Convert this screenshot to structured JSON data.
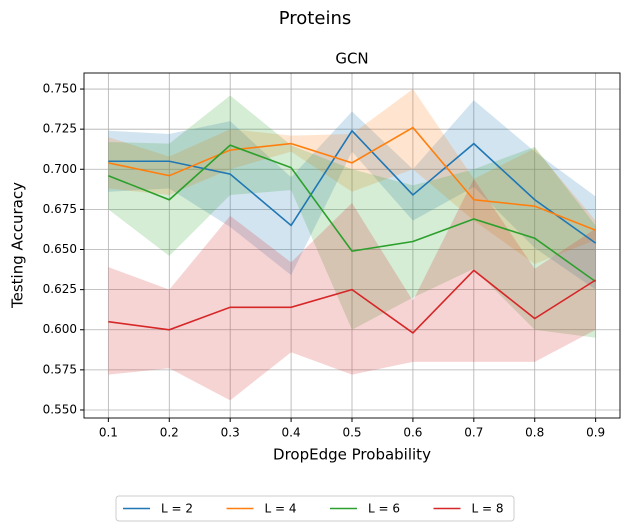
{
  "chart_data": {
    "type": "line",
    "title": "Proteins",
    "subtitle": "GCN",
    "xlabel": "DropEdge Probability",
    "ylabel": "Testing Accuracy",
    "x": [
      0.1,
      0.2,
      0.3,
      0.4,
      0.5,
      0.6,
      0.7,
      0.8,
      0.9
    ],
    "series": [
      {
        "name": "L = 2",
        "color": "#1f77b4",
        "values": [
          0.705,
          0.705,
          0.697,
          0.665,
          0.724,
          0.684,
          0.716,
          0.681,
          0.654
        ],
        "upper": [
          0.724,
          0.722,
          0.73,
          0.695,
          0.736,
          0.7,
          0.743,
          0.711,
          0.683
        ],
        "lower": [
          0.686,
          0.688,
          0.664,
          0.634,
          0.711,
          0.668,
          0.689,
          0.651,
          0.625
        ]
      },
      {
        "name": "L = 4",
        "color": "#ff7f0e",
        "values": [
          0.704,
          0.696,
          0.712,
          0.716,
          0.704,
          0.726,
          0.681,
          0.677,
          0.662
        ],
        "upper": [
          0.72,
          0.708,
          0.725,
          0.721,
          0.722,
          0.75,
          0.694,
          0.713,
          0.668
        ],
        "lower": [
          0.688,
          0.684,
          0.7,
          0.711,
          0.686,
          0.7,
          0.668,
          0.641,
          0.656
        ]
      },
      {
        "name": "L = 6",
        "color": "#2ca02c",
        "values": [
          0.696,
          0.681,
          0.715,
          0.701,
          0.649,
          0.655,
          0.669,
          0.657,
          0.63
        ],
        "upper": [
          0.717,
          0.716,
          0.746,
          0.715,
          0.7,
          0.69,
          0.7,
          0.714,
          0.665
        ],
        "lower": [
          0.675,
          0.646,
          0.684,
          0.687,
          0.6,
          0.62,
          0.638,
          0.6,
          0.595
        ]
      },
      {
        "name": "L = 8",
        "color": "#d62728",
        "values": [
          0.605,
          0.6,
          0.614,
          0.614,
          0.625,
          0.598,
          0.637,
          0.607,
          0.631
        ],
        "upper": [
          0.639,
          0.625,
          0.671,
          0.642,
          0.679,
          0.618,
          0.694,
          0.638,
          0.663
        ],
        "lower": [
          0.572,
          0.576,
          0.556,
          0.586,
          0.572,
          0.58,
          0.58,
          0.58,
          0.6
        ]
      }
    ],
    "xlim": [
      0.06,
      0.94
    ],
    "ylim": [
      0.545,
      0.76
    ],
    "xticks": [
      0.1,
      0.2,
      0.3,
      0.4,
      0.5,
      0.6,
      0.7,
      0.8,
      0.9
    ],
    "yticks": [
      {
        "value": 0.55,
        "label": "0.550"
      },
      {
        "value": 0.575,
        "label": "0.575"
      },
      {
        "value": 0.6,
        "label": "0.600"
      },
      {
        "value": 0.625,
        "label": "0.625"
      },
      {
        "value": 0.65,
        "label": "0.650"
      },
      {
        "value": 0.675,
        "label": "0.675"
      },
      {
        "value": 0.7,
        "label": "0.700"
      },
      {
        "value": 0.725,
        "label": "0.725"
      },
      {
        "value": 0.75,
        "label": "0.750"
      }
    ],
    "grid": true,
    "legend": "bottom"
  }
}
